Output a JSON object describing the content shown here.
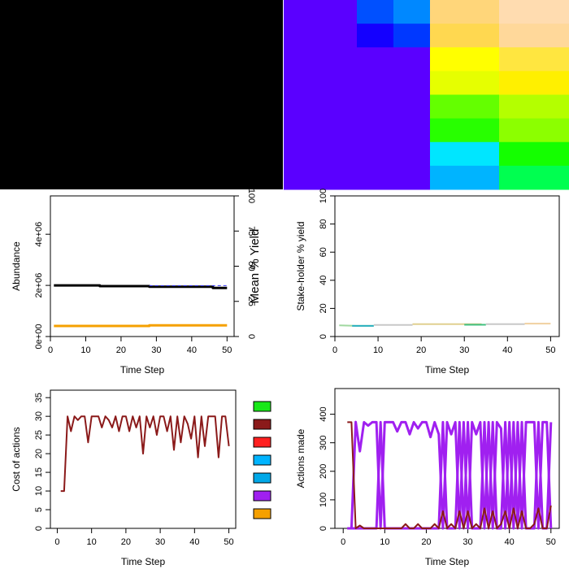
{
  "chart_data": [
    {
      "type": "heatmap",
      "panel": "land-ownership-map",
      "colors": [
        "#000000"
      ]
    },
    {
      "type": "heatmap",
      "panel": "resource-cell-map",
      "columns": [
        [
          "#5a00ff",
          "#5a00ff",
          "#5a00ff",
          "#5a00ff",
          "#5a00ff",
          "#5a00ff",
          "#5a00ff",
          "#5a00ff"
        ],
        [
          "#5a00ff",
          "#5a00ff",
          "#5a00ff",
          "#5a00ff",
          "#5a00ff",
          "#5a00ff",
          "#5a00ff",
          "#5a00ff"
        ],
        [
          "#0050ff",
          "#1400ff",
          "#5a00ff",
          "#5a00ff",
          "#5a00ff",
          "#5a00ff",
          "#5a00ff",
          "#5a00ff"
        ],
        [
          "#0088ff",
          "#0038ff",
          "#5a00ff",
          "#5a00ff",
          "#5a00ff",
          "#5a00ff",
          "#5a00ff",
          "#5a00ff"
        ],
        [
          "#ffd67a",
          "#ffd850",
          "#ffff00",
          "#e6ff00",
          "#64ff00",
          "#28ff00",
          "#00e6ff",
          "#00b4ff"
        ],
        [
          "#ffdcb0",
          "#ffd89a",
          "#ffe640",
          "#fff000",
          "#b4ff00",
          "#8cff00",
          "#14ff00",
          "#00ff50"
        ]
      ]
    },
    {
      "type": "line",
      "panel": "abundance-yield",
      "xlabel": "Time Step",
      "ylabel": "Abundance",
      "ylabel_right": "Mean % Yield",
      "xlim": [
        0,
        52
      ],
      "ylim": [
        0,
        5500000
      ],
      "ylim_right": [
        0,
        100
      ],
      "xticks": [
        0,
        10,
        20,
        30,
        40,
        50
      ],
      "yticks": [
        0,
        2000000,
        4000000
      ],
      "ytick_labels": [
        "0e+00",
        "2e+06",
        "4e+06"
      ],
      "yticks_right": [
        0,
        25,
        50,
        75,
        100
      ],
      "series": [
        {
          "color": "#000000",
          "width": 3,
          "x": [
            1,
            14,
            14,
            28,
            28,
            46,
            46,
            50
          ],
          "y": [
            2000000,
            2000000,
            1970000,
            1970000,
            1950000,
            1950000,
            1900000,
            1900000
          ]
        },
        {
          "color": "#3a3aff",
          "width": 1,
          "dash": "4,3",
          "x": [
            28,
            50
          ],
          "y": [
            1990000,
            1990000
          ]
        },
        {
          "color": "#f5a000",
          "width": 3,
          "axis": "right",
          "x": [
            1,
            28,
            28,
            50
          ],
          "y": [
            7.5,
            7.5,
            8,
            8
          ]
        }
      ]
    },
    {
      "type": "line",
      "panel": "stakeholder-yield",
      "xlabel": "Time Step",
      "ylabel": "Stake-holder % yield",
      "xlim": [
        0,
        52
      ],
      "ylim": [
        0,
        100
      ],
      "xticks": [
        0,
        10,
        20,
        30,
        40,
        50
      ],
      "yticks": [
        0,
        20,
        40,
        60,
        80,
        100
      ],
      "series": [
        {
          "color": "#a0d8a0",
          "width": 2,
          "x": [
            1,
            5,
            9
          ],
          "y": [
            8,
            7.6,
            7.6
          ]
        },
        {
          "color": "#2ab0c0",
          "width": 2,
          "x": [
            4,
            9
          ],
          "y": [
            7.6,
            7.6
          ]
        },
        {
          "color": "#c8c8c8",
          "width": 2,
          "x": [
            9,
            18
          ],
          "y": [
            8.2,
            8.2
          ]
        },
        {
          "color": "#e0d090",
          "width": 2,
          "x": [
            18,
            34
          ],
          "y": [
            8.8,
            8.8
          ]
        },
        {
          "color": "#40c080",
          "width": 2,
          "x": [
            30,
            35
          ],
          "y": [
            8.4,
            8.4
          ]
        },
        {
          "color": "#c8c8c8",
          "width": 2,
          "x": [
            35,
            44
          ],
          "y": [
            8.8,
            8.8
          ]
        },
        {
          "color": "#f0d0a0",
          "width": 2,
          "x": [
            44,
            50
          ],
          "y": [
            9.2,
            9.2
          ]
        }
      ]
    },
    {
      "type": "line",
      "panel": "cost-of-actions",
      "xlabel": "Time Step",
      "ylabel": "Cost of actions",
      "xlim": [
        -2,
        52
      ],
      "ylim": [
        0,
        37
      ],
      "xticks": [
        0,
        10,
        20,
        30,
        40,
        50
      ],
      "yticks": [
        0,
        5,
        10,
        15,
        20,
        25,
        30,
        35
      ],
      "series": [
        {
          "color": "#8b1a1a",
          "width": 2,
          "x": [
            1,
            2,
            3,
            4,
            5,
            6,
            7,
            8,
            9,
            10,
            11,
            12,
            13,
            14,
            15,
            16,
            17,
            18,
            19,
            20,
            21,
            22,
            23,
            24,
            25,
            26,
            27,
            28,
            29,
            30,
            31,
            32,
            33,
            34,
            35,
            36,
            37,
            38,
            39,
            40,
            41,
            42,
            43,
            44,
            45,
            46,
            47,
            48,
            49,
            50
          ],
          "y": [
            10,
            10,
            30,
            26,
            30,
            29,
            30,
            30,
            23,
            30,
            30,
            30,
            27,
            30,
            29,
            27,
            30,
            26,
            30,
            30,
            26,
            30,
            27,
            30,
            20,
            30,
            27,
            30,
            25,
            30,
            30,
            26,
            30,
            21,
            30,
            23,
            30,
            28,
            24,
            30,
            19,
            30,
            22,
            30,
            30,
            30,
            19,
            30,
            30,
            22
          ]
        }
      ]
    },
    {
      "type": "bar",
      "panel": "legend-swatches",
      "values": [],
      "colors": [
        "#18e818",
        "#8b1a1a",
        "#ff2020",
        "#00b4ff",
        "#00a8e8",
        "#a020f0",
        "#f5a000"
      ]
    },
    {
      "type": "line",
      "panel": "actions-made",
      "xlabel": "Time Step",
      "ylabel": "Actions made",
      "xlim": [
        -2,
        52
      ],
      "ylim": [
        0,
        490
      ],
      "xticks": [
        0,
        10,
        20,
        30,
        40,
        50
      ],
      "yticks": [
        0,
        100,
        200,
        300,
        400
      ],
      "series": [
        {
          "color": "#a020f0",
          "width": 3,
          "x": [
            1,
            2,
            3,
            4,
            5,
            6,
            7,
            8,
            9,
            10,
            11,
            12,
            13,
            14,
            15,
            16,
            17,
            18,
            19,
            20,
            21,
            22,
            23,
            24,
            25,
            26,
            27,
            28,
            29,
            30,
            31,
            32,
            33,
            34,
            35,
            36,
            37,
            38,
            39,
            40,
            41,
            42,
            43,
            44,
            45,
            46,
            47,
            48,
            49,
            50
          ],
          "y": [
            0,
            0,
            373,
            270,
            372,
            360,
            372,
            372,
            0,
            372,
            372,
            372,
            340,
            372,
            372,
            330,
            372,
            350,
            372,
            372,
            320,
            372,
            330,
            0,
            372,
            330,
            372,
            0,
            372,
            0,
            372,
            330,
            372,
            0,
            372,
            0,
            372,
            350,
            0,
            372,
            0,
            372,
            0,
            372,
            372,
            372,
            0,
            372,
            372,
            0
          ]
        },
        {
          "color": "#a020f0",
          "width": 3,
          "x": [
            1,
            2,
            3,
            4,
            5,
            6,
            7,
            8,
            9,
            10,
            11,
            12,
            13,
            14,
            15,
            16,
            17,
            18,
            19,
            20,
            21,
            22,
            23,
            24,
            25,
            26,
            27,
            28,
            29,
            30,
            31,
            32,
            33,
            34,
            35,
            36,
            37,
            38,
            39,
            40,
            41,
            42,
            43,
            44,
            45,
            46,
            47,
            48,
            49,
            50
          ],
          "y": [
            0,
            0,
            0,
            0,
            0,
            0,
            0,
            0,
            372,
            0,
            0,
            0,
            0,
            0,
            0,
            0,
            0,
            0,
            0,
            0,
            0,
            0,
            0,
            372,
            0,
            0,
            0,
            372,
            0,
            372,
            0,
            0,
            0,
            372,
            0,
            372,
            0,
            0,
            372,
            0,
            372,
            0,
            372,
            0,
            0,
            0,
            372,
            0,
            0,
            372
          ]
        },
        {
          "color": "#8b1a1a",
          "width": 2,
          "x": [
            1,
            1,
            2,
            3,
            4,
            5,
            6,
            7,
            8,
            9,
            10,
            11,
            12,
            13,
            14,
            15,
            16,
            17,
            18,
            19,
            20,
            21,
            22,
            23,
            24,
            25,
            26,
            27,
            28,
            29,
            30,
            31,
            32,
            33,
            34,
            35,
            36,
            37,
            38,
            39,
            40,
            41,
            42,
            43,
            44,
            45,
            46,
            47,
            48,
            49,
            50
          ],
          "y": [
            372,
            372,
            372,
            0,
            10,
            0,
            0,
            0,
            0,
            0,
            0,
            0,
            0,
            0,
            0,
            15,
            0,
            0,
            15,
            0,
            0,
            0,
            15,
            0,
            60,
            0,
            15,
            0,
            60,
            0,
            60,
            0,
            15,
            0,
            70,
            0,
            60,
            0,
            15,
            60,
            0,
            70,
            0,
            60,
            0,
            0,
            15,
            70,
            0,
            0,
            80
          ]
        }
      ]
    }
  ]
}
